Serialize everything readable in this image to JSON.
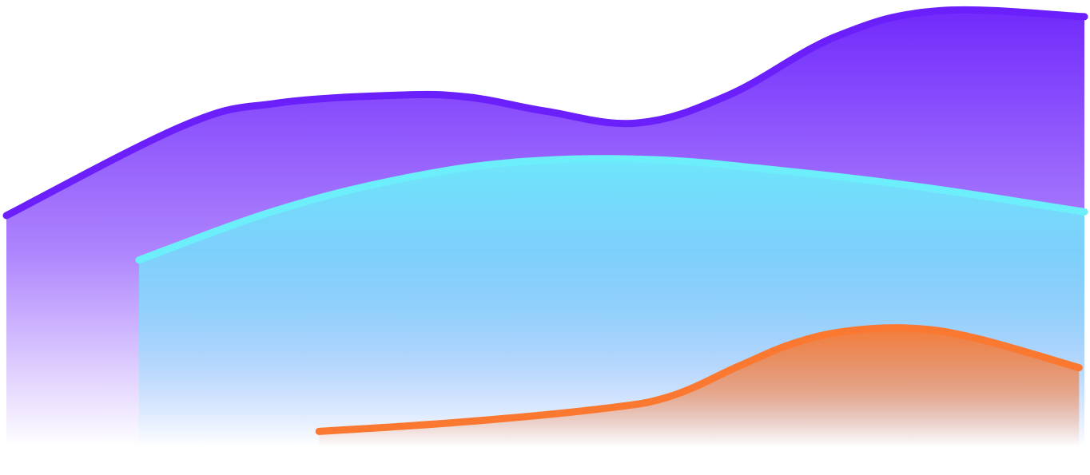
{
  "chart_data": {
    "type": "area",
    "title": "",
    "xlabel": "",
    "ylabel": "",
    "grid": false,
    "legend": "none",
    "xlim": [
      0,
      100
    ],
    "ylim": [
      0,
      100
    ],
    "series": [
      {
        "color": "#6a1ffb",
        "x": [
          0,
          16.5,
          25,
          36.5,
          43,
          50,
          58.5,
          67,
          77,
          86.5,
          100
        ],
        "y": [
          54,
          73.7,
          78.5,
          80.3,
          79.8,
          76.8,
          74.2,
          80.3,
          93.1,
          98.7,
          97.4
        ]
      },
      {
        "color": "#6ceefb",
        "x": [
          12.3,
          25,
          37,
          48,
          60,
          72,
          85,
          100
        ],
        "y": [
          44.3,
          55.1,
          62.2,
          65.8,
          66.2,
          63.8,
          60.2,
          54.8
        ]
      },
      {
        "color": "#fa7830",
        "x": [
          29,
          42,
          55,
          61.5,
          68,
          73,
          78,
          84,
          90,
          99.5
        ],
        "y": [
          6.9,
          8.9,
          11.8,
          14.5,
          21.2,
          26.1,
          28.8,
          29.4,
          27.2,
          20.8
        ]
      }
    ]
  }
}
